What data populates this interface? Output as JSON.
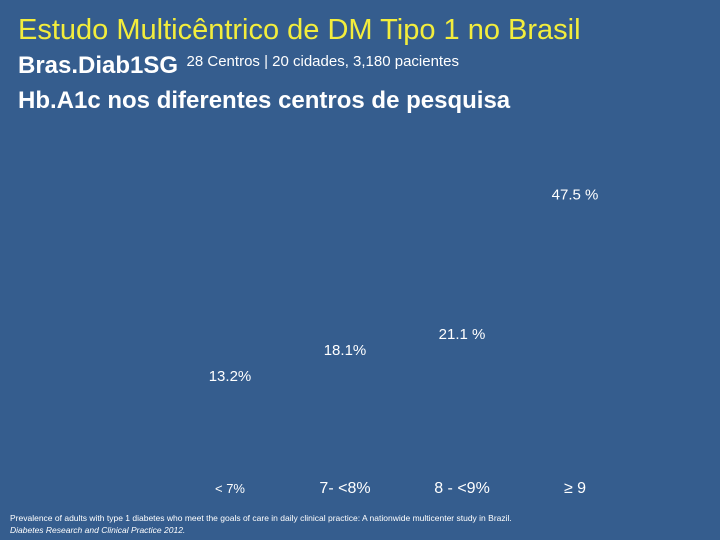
{
  "slide": {
    "title": "Estudo Multicêntrico de DM Tipo 1 no Brasil",
    "subtitle_main": "Bras.Diab1SG",
    "subtitle_detail": "28 Centros | 20 cidades, 3,180 pacientes",
    "heading": "Hb.A1c nos diferentes centros de pesquisa",
    "footnote_line1": "Prevalence of adults with type 1 diabetes who meet the  goals of care in daily clinical practice: A nationwide multicenter study in Brazil.",
    "footnote_line2": "Diabetes Research  and  Clinical Practice 2012."
  },
  "chart_data": {
    "type": "bar",
    "categories": [
      "< 7%",
      "7- <8%",
      "8 - <9%",
      "≥ 9"
    ],
    "values": [
      13.2,
      18.1,
      21.1,
      47.5
    ],
    "value_labels": [
      "13.2%",
      "18.1%",
      "21.1 %",
      "47.5 %"
    ],
    "bars_visible": false,
    "ylim": [
      0,
      50
    ],
    "title": "",
    "xlabel": "",
    "ylabel": ""
  },
  "colors": {
    "background": "#355d8e",
    "title": "#f3ed3c",
    "text": "#ffffff"
  }
}
